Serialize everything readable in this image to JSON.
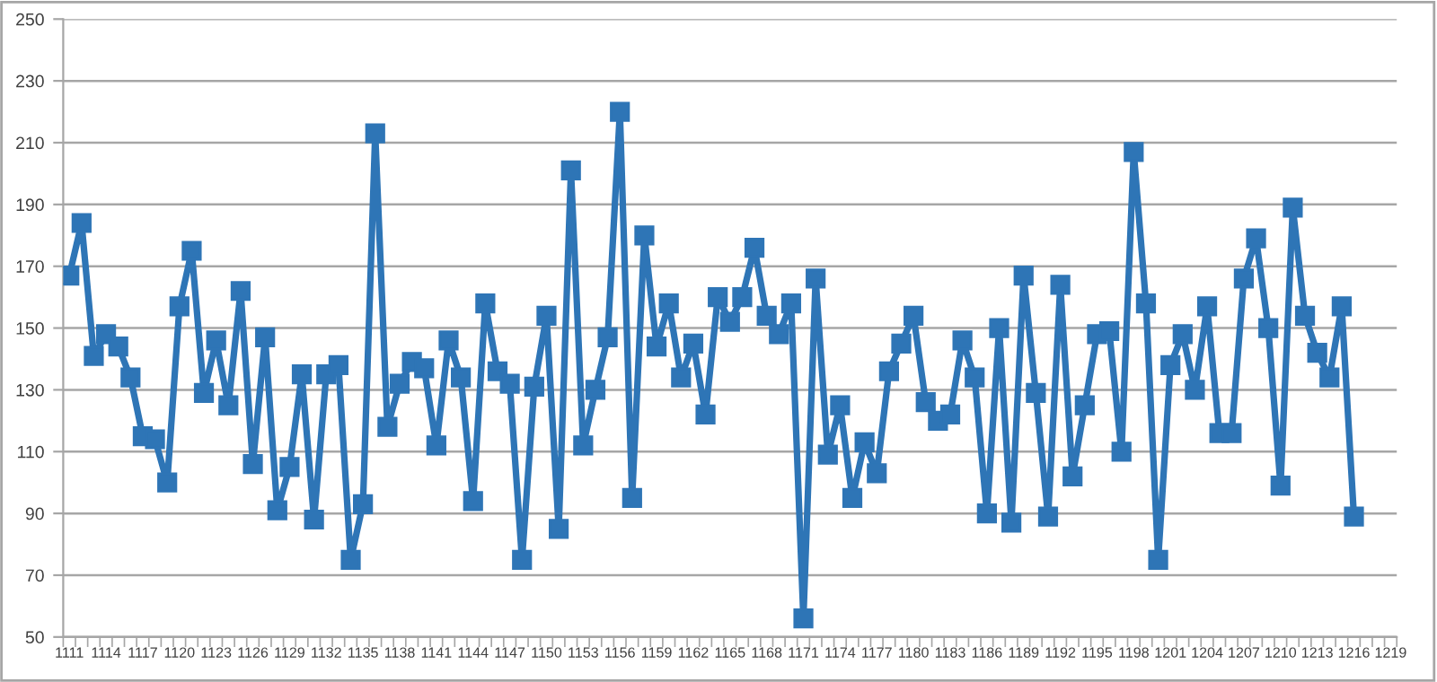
{
  "chart_data": {
    "type": "line",
    "categories": [
      "1111",
      null,
      null,
      "1114",
      null,
      null,
      "1117",
      null,
      null,
      "1120",
      null,
      null,
      "1123",
      null,
      null,
      "1126",
      null,
      null,
      "1129",
      null,
      null,
      "1132",
      null,
      null,
      "1135",
      null,
      null,
      "1138",
      null,
      null,
      "1141",
      null,
      null,
      "1144",
      null,
      null,
      "1147",
      null,
      null,
      "1150",
      null,
      null,
      "1153",
      null,
      null,
      "1156",
      null,
      null,
      "1159",
      null,
      null,
      "1162",
      null,
      null,
      "1165",
      null,
      null,
      "1168",
      null,
      null,
      "1171",
      null,
      null,
      "1174",
      null,
      null,
      "1177",
      null,
      null,
      "1180",
      null,
      null,
      "1183",
      null,
      null,
      "1186",
      null,
      null,
      "1189",
      null,
      null,
      "1192",
      null,
      null,
      "1195",
      null,
      null,
      "1198",
      null,
      null,
      "1201",
      null,
      null,
      "1204",
      null,
      null,
      "1207",
      null,
      null,
      "1210",
      null,
      null,
      "1213",
      null,
      null,
      "1216",
      null,
      null,
      "1219"
    ],
    "series": [
      {
        "color": "#2e75b6",
        "values": [
          167,
          184,
          141,
          148,
          144,
          134,
          115,
          114,
          100,
          157,
          175,
          129,
          146,
          125,
          162,
          106,
          147,
          91,
          105,
          135,
          88,
          135,
          138,
          75,
          93,
          213,
          118,
          132,
          139,
          137,
          112,
          146,
          134,
          94,
          158,
          136,
          132,
          75,
          131,
          154,
          85,
          201,
          112,
          130,
          147,
          220,
          95,
          180,
          144,
          158,
          134,
          145,
          122,
          160,
          152,
          160,
          176,
          154,
          148,
          158,
          56,
          166,
          109,
          125,
          95,
          113,
          103,
          136,
          145,
          154,
          126,
          120,
          122,
          146,
          134,
          90,
          150,
          87,
          167,
          129,
          89,
          164,
          102,
          125,
          148,
          149,
          110,
          207,
          158,
          75,
          138,
          148,
          130,
          157,
          116,
          116,
          166,
          179,
          150,
          99,
          189,
          154,
          142,
          134,
          157,
          89,
          null,
          null,
          null
        ]
      }
    ],
    "ylim": [
      50,
      250
    ],
    "yticks": [
      50,
      70,
      90,
      110,
      130,
      150,
      170,
      190,
      210,
      230,
      250
    ],
    "grid": "y",
    "marker": "square",
    "line_style": "solid",
    "legend": false
  }
}
